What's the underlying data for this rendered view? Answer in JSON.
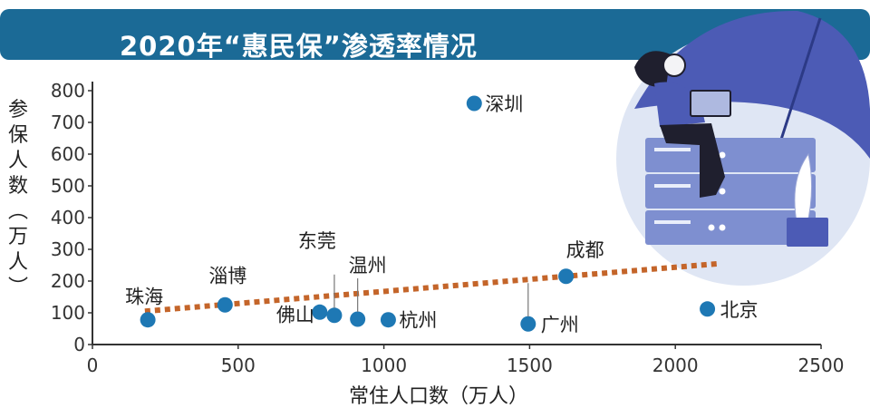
{
  "title": "2020年“惠民保”渗透率情况",
  "chart_data": {
    "type": "scatter",
    "title": "2020年“惠民保”渗透率情况",
    "xlabel": "常住人口数（万人）",
    "ylabel": "参保人数（万人）",
    "xlim": [
      0,
      2500
    ],
    "ylim": [
      0,
      800
    ],
    "x_ticks": [
      "0",
      "500",
      "1000",
      "1500",
      "2000",
      "2500"
    ],
    "y_ticks": [
      "0",
      "100",
      "200",
      "300",
      "400",
      "500",
      "600",
      "700",
      "800"
    ],
    "grid": false,
    "points": [
      {
        "label": "珠海",
        "x": 190,
        "y": 78
      },
      {
        "label": "淄博",
        "x": 455,
        "y": 125
      },
      {
        "label": "佛山",
        "x": 780,
        "y": 102
      },
      {
        "label": "东莞",
        "x": 830,
        "y": 92
      },
      {
        "label": "温州",
        "x": 910,
        "y": 80
      },
      {
        "label": "杭州",
        "x": 1015,
        "y": 78
      },
      {
        "label": "深圳",
        "x": 1310,
        "y": 760
      },
      {
        "label": "广州",
        "x": 1495,
        "y": 65
      },
      {
        "label": "成都",
        "x": 1625,
        "y": 215
      },
      {
        "label": "北京",
        "x": 2110,
        "y": 112
      }
    ],
    "trendline": {
      "style": "dotted",
      "from": {
        "x": 180,
        "y": 105
      },
      "to": {
        "x": 2150,
        "y": 255
      }
    },
    "colors": {
      "point": "#1e78b4",
      "trend": "#c4652a",
      "banner": "#1b6a96"
    }
  }
}
